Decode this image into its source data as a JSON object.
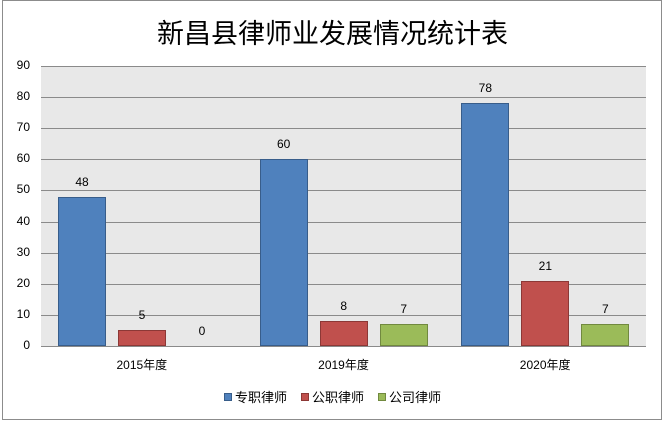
{
  "chart_data": {
    "type": "bar",
    "title": "新昌县律师业发展情况统计表",
    "categories": [
      "2015年度",
      "2019年度",
      "2020年度"
    ],
    "series": [
      {
        "name": "专职律师",
        "values": [
          48,
          60,
          78
        ],
        "color": "#4f81bd",
        "border": "#385d8a"
      },
      {
        "name": "公职律师",
        "values": [
          5,
          8,
          21
        ],
        "color": "#c0504d",
        "border": "#8c3836"
      },
      {
        "name": "公司律师",
        "values": [
          0,
          7,
          7
        ],
        "color": "#9bbb59",
        "border": "#71893f"
      }
    ],
    "xlabel": "",
    "ylabel": "",
    "ylim": [
      0,
      90
    ],
    "yticks": [
      0,
      10,
      20,
      30,
      40,
      50,
      60,
      70,
      80,
      90
    ],
    "grid": true,
    "legend_position": "bottom",
    "data_labels": true
  }
}
